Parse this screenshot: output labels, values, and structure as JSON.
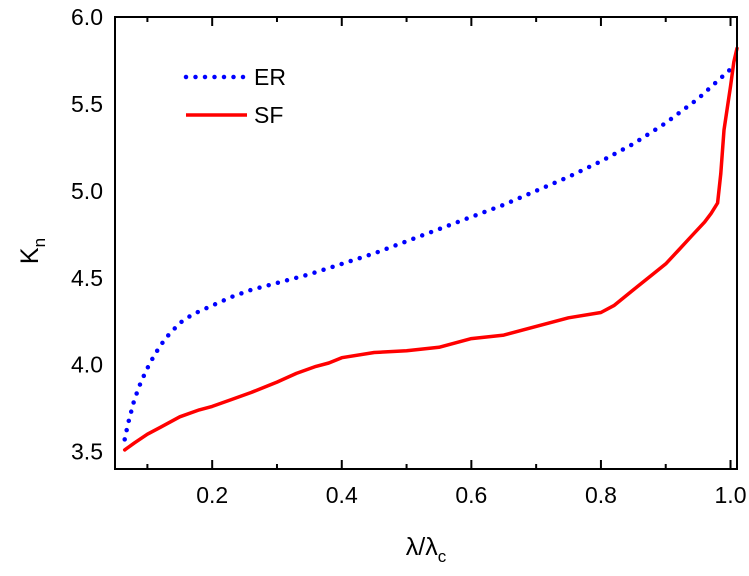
{
  "chart_data": {
    "type": "line",
    "xlabel": "λ/λc",
    "xlabel_main": "λ/λ",
    "xlabel_sub": "c",
    "ylabel": "Kn",
    "ylabel_main": "K",
    "ylabel_sub": "n",
    "xlim": [
      0.05,
      1.01
    ],
    "ylim": [
      3.4,
      6.0
    ],
    "xticks": [
      0.2,
      0.4,
      0.6,
      0.8,
      1.0
    ],
    "xtick_labels": [
      "0.2",
      "0.4",
      "0.6",
      "0.8",
      "1.0"
    ],
    "yticks": [
      3.5,
      4.0,
      4.5,
      5.0,
      5.5,
      6.0
    ],
    "ytick_labels": [
      "3.5",
      "4.0",
      "4.5",
      "5.0",
      "5.5",
      "6.0"
    ],
    "grid": false,
    "legend_position": "top-left",
    "series": [
      {
        "name": "ER",
        "color": "#0000ff",
        "style": "dotted",
        "x": [
          0.065,
          0.07,
          0.08,
          0.09,
          0.1,
          0.11,
          0.12,
          0.13,
          0.15,
          0.17,
          0.2,
          0.23,
          0.26,
          0.3,
          0.35,
          0.4,
          0.45,
          0.5,
          0.55,
          0.6,
          0.65,
          0.7,
          0.75,
          0.8,
          0.85,
          0.9,
          0.95,
          1.0
        ],
        "y": [
          3.57,
          3.66,
          3.8,
          3.9,
          3.98,
          4.05,
          4.11,
          4.16,
          4.24,
          4.29,
          4.34,
          4.39,
          4.43,
          4.47,
          4.52,
          4.58,
          4.64,
          4.71,
          4.78,
          4.85,
          4.92,
          5.0,
          5.08,
          5.17,
          5.27,
          5.39,
          5.53,
          5.7
        ]
      },
      {
        "name": "SF",
        "color": "#ff0000",
        "style": "solid",
        "x": [
          0.065,
          0.08,
          0.1,
          0.12,
          0.15,
          0.18,
          0.2,
          0.23,
          0.26,
          0.3,
          0.33,
          0.36,
          0.38,
          0.4,
          0.45,
          0.5,
          0.55,
          0.6,
          0.65,
          0.7,
          0.75,
          0.8,
          0.82,
          0.85,
          0.88,
          0.9,
          0.92,
          0.94,
          0.96,
          0.97,
          0.98,
          0.985,
          0.99,
          1.0,
          1.005,
          1.01
        ],
        "y": [
          3.51,
          3.55,
          3.6,
          3.64,
          3.7,
          3.74,
          3.76,
          3.8,
          3.84,
          3.9,
          3.95,
          3.99,
          4.01,
          4.04,
          4.07,
          4.08,
          4.1,
          4.15,
          4.17,
          4.22,
          4.27,
          4.3,
          4.34,
          4.43,
          4.52,
          4.58,
          4.66,
          4.74,
          4.82,
          4.87,
          4.93,
          5.1,
          5.35,
          5.6,
          5.74,
          5.82
        ]
      }
    ]
  }
}
